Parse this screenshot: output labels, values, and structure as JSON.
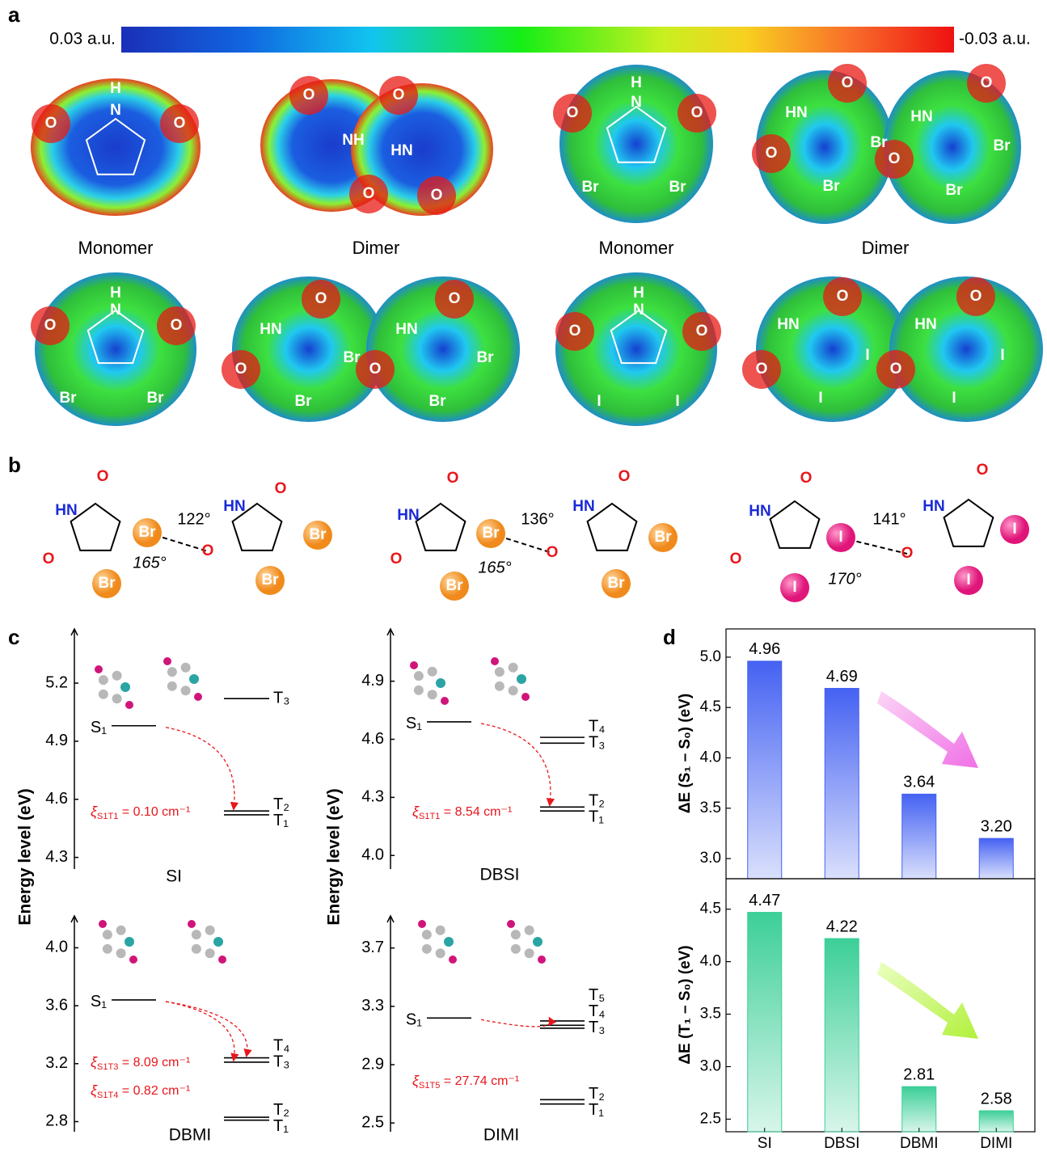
{
  "panel_labels": [
    "a",
    "b",
    "c",
    "d"
  ],
  "colorbar": {
    "min_label": "0.03 a.u.",
    "max_label": "-0.03 a.u."
  },
  "esp": {
    "captions": [
      "Monomer",
      "Dimer",
      "Monomer",
      "Dimer"
    ],
    "molecules": [
      {
        "atoms": [
          "H",
          "N",
          "O",
          "O"
        ]
      },
      {
        "atoms": [
          "O",
          "NH",
          "O",
          "O",
          "HN",
          "O"
        ]
      },
      {
        "atoms": [
          "H",
          "N",
          "O",
          "O",
          "Br",
          "Br"
        ]
      },
      {
        "atoms": [
          "O",
          "HN",
          "O",
          "Br",
          "Br",
          "O",
          "HN",
          "O",
          "Br",
          "Br"
        ]
      },
      {
        "atoms": [
          "H",
          "N",
          "O",
          "O",
          "Br",
          "Br"
        ]
      },
      {
        "atoms": [
          "O",
          "HN",
          "O",
          "Br",
          "Br",
          "O",
          "HN",
          "O",
          "Br",
          "Br"
        ]
      },
      {
        "atoms": [
          "H",
          "N",
          "O",
          "O",
          "I",
          "I"
        ]
      },
      {
        "atoms": [
          "O",
          "HN",
          "O",
          "I",
          "I",
          "O",
          "HN",
          "O",
          "I",
          "I"
        ]
      }
    ]
  },
  "interactions": [
    {
      "atoms": [
        "O",
        "HN",
        "O",
        "Br",
        "Br",
        "O",
        "HN",
        "O",
        "Br",
        "Br"
      ],
      "angles": [
        "122°",
        "165°"
      ]
    },
    {
      "atoms": [
        "O",
        "HN",
        "O",
        "Br",
        "Br",
        "O",
        "HN",
        "O",
        "Br",
        "Br"
      ],
      "angles": [
        "136°",
        "165°"
      ]
    },
    {
      "atoms": [
        "O",
        "HN",
        "O",
        "I",
        "I",
        "O",
        "HN",
        "O",
        "I",
        "I"
      ],
      "angles": [
        "141°",
        "170°"
      ]
    }
  ],
  "energy_axis_title": "Energy level (eV)",
  "chart_data": [
    {
      "type": "energy-level",
      "title": "SI",
      "ylim": [
        4.24,
        5.48
      ],
      "yticks": [
        4.3,
        4.6,
        4.9,
        5.2
      ],
      "levels": [
        {
          "name": "S₁",
          "value": 4.98
        },
        {
          "name": "T₃",
          "value": 5.12
        },
        {
          "name": "T₂",
          "value": 4.54
        },
        {
          "name": "T₁",
          "value": 4.52
        }
      ],
      "couplings": [
        {
          "symbol": "ξ",
          "sub": "S1T1",
          "text": " = 0.10 cm⁻¹"
        }
      ]
    },
    {
      "type": "energy-level",
      "title": "DBSI",
      "ylim": [
        3.93,
        5.17
      ],
      "yticks": [
        {
          "value": 4,
          "label": "4.0"
        },
        4.3,
        4.6,
        4.9
      ],
      "levels": [
        {
          "name": "S₁",
          "value": 4.69
        },
        {
          "name": "T₄",
          "value": 4.61
        },
        {
          "name": "T₃",
          "value": 4.58
        },
        {
          "name": "T₂",
          "value": 4.25
        },
        {
          "name": "T₁",
          "value": 4.23
        }
      ],
      "couplings": [
        {
          "symbol": "ξ",
          "sub": "S1T1",
          "text": " = 8.54 cm⁻¹"
        }
      ]
    },
    {
      "type": "energy-level",
      "title": "DBMI",
      "ylim": [
        2.73,
        4.22
      ],
      "yticks": [
        2.8,
        3.2,
        3.6,
        {
          "value": 4,
          "label": "4.0"
        }
      ],
      "levels": [
        {
          "name": "S₁",
          "value": 3.64
        },
        {
          "name": "T₄",
          "value": 3.24
        },
        {
          "name": "T₃",
          "value": 3.21
        },
        {
          "name": "T₂",
          "value": 2.83
        },
        {
          "name": "T₁",
          "value": 2.81
        }
      ],
      "couplings": [
        {
          "symbol": "ξ",
          "sub": "S1T3",
          "text": " = 8.09 cm⁻¹"
        },
        {
          "symbol": "ξ",
          "sub": "S1T4",
          "text": " = 0.82 cm⁻¹"
        }
      ]
    },
    {
      "type": "energy-level",
      "title": "DIMI",
      "ylim": [
        2.44,
        3.92
      ],
      "yticks": [
        2.5,
        2.9,
        3.3,
        3.7
      ],
      "levels": [
        {
          "name": "S₁",
          "value": 3.22
        },
        {
          "name": "T₅",
          "value": 3.2
        },
        {
          "name": "T₄",
          "value": 3.17
        },
        {
          "name": "T₃",
          "value": 3.15
        },
        {
          "name": "T₂",
          "value": 2.66
        },
        {
          "name": "T₁",
          "value": 2.63
        }
      ],
      "couplings": [
        {
          "symbol": "ξ",
          "sub": "S1T5",
          "text": " = 27.74 cm⁻¹"
        }
      ]
    },
    {
      "type": "bar",
      "ylabel": "ΔE (S₁ – S₀) (eV)",
      "categories": [
        null,
        null,
        null,
        null
      ],
      "values": [
        4.96,
        4.69,
        3.64,
        3.2
      ],
      "value_labels": [
        "4.96",
        "4.69",
        "3.64",
        "3.20"
      ],
      "color": "#4562f2",
      "ylim": [
        2.8,
        5.28
      ],
      "yticks": [
        {
          "value": 3,
          "label": "3.0"
        },
        3.5,
        {
          "value": 4,
          "label": "4.0"
        },
        4.5,
        {
          "value": 5,
          "label": "5.0"
        }
      ]
    },
    {
      "type": "bar",
      "ylabel": "ΔE (T₁ – S₀) (eV)",
      "categories": [
        "SI",
        "DBSI",
        "DBMI",
        "DIMI"
      ],
      "values": [
        4.47,
        4.22,
        2.81,
        2.58
      ],
      "value_labels": [
        "4.47",
        "4.22",
        "2.81",
        "2.58"
      ],
      "color": "#3ccf98",
      "ylim": [
        2.38,
        4.79
      ],
      "yticks": [
        2.5,
        {
          "value": 3,
          "label": "3.0"
        },
        3.5,
        {
          "value": 4,
          "label": "4.0"
        },
        4.5
      ]
    }
  ]
}
